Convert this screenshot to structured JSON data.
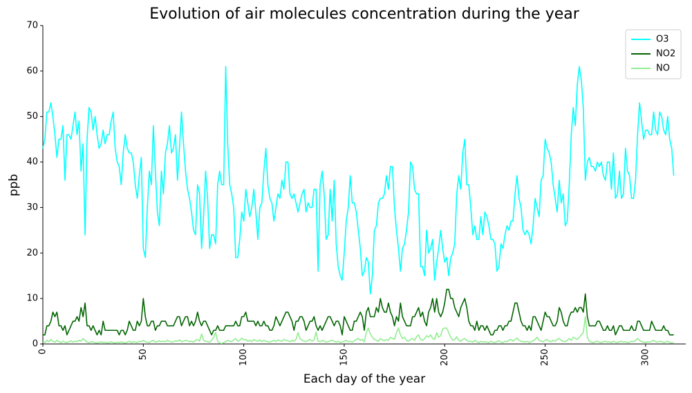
{
  "chart_data": {
    "type": "line",
    "title": "Evolution of air molecules concentration during the year",
    "xlabel": "Each day of the year",
    "ylabel": "ppb",
    "xlim": [
      0,
      320
    ],
    "ylim": [
      0,
      70
    ],
    "xticks": [
      0,
      50,
      100,
      150,
      200,
      250,
      300
    ],
    "yticks": [
      0,
      10,
      20,
      30,
      40,
      50,
      60,
      70
    ],
    "grid": false,
    "legend": "upper right",
    "x": [
      0,
      1,
      2,
      3,
      4,
      5,
      6,
      7,
      8,
      9,
      10,
      11,
      12,
      13,
      14,
      15,
      16,
      17,
      18,
      19,
      20,
      21,
      22,
      23,
      24,
      25,
      26,
      27,
      28,
      29,
      30,
      31,
      32,
      33,
      34,
      35,
      36,
      37,
      38,
      39,
      40,
      41,
      42,
      43,
      44,
      45,
      46,
      47,
      48,
      49,
      50,
      51,
      52,
      53,
      54,
      55,
      56,
      57,
      58,
      59,
      60,
      61,
      62,
      63,
      64,
      65,
      66,
      67,
      68,
      69,
      70,
      71,
      72,
      73,
      74,
      75,
      76,
      77,
      78,
      79,
      80,
      81,
      82,
      83,
      84,
      85,
      86,
      87,
      88,
      89,
      90,
      91,
      92,
      93,
      94,
      95,
      96,
      97,
      98,
      99,
      100,
      101,
      102,
      103,
      104,
      105,
      106,
      107,
      108,
      109,
      110,
      111,
      112,
      113,
      114,
      115,
      116,
      117,
      118,
      119,
      120,
      121,
      122,
      123,
      124,
      125,
      126,
      127,
      128,
      129,
      130,
      131,
      132,
      133,
      134,
      135,
      136,
      137,
      138,
      139,
      140,
      141,
      142,
      143,
      144,
      145,
      146,
      147,
      148,
      149,
      150,
      151,
      152,
      153,
      154,
      155,
      156,
      157,
      158,
      159,
      160,
      161,
      162,
      163,
      164,
      165,
      166,
      167,
      168,
      169,
      170,
      171,
      172,
      173,
      174,
      175,
      176,
      177,
      178,
      179,
      180,
      181,
      182,
      183,
      184,
      185,
      186,
      187,
      188,
      189,
      190,
      191,
      192,
      193,
      194,
      195,
      196,
      197,
      198,
      199,
      200,
      201,
      202,
      203,
      204,
      205,
      206,
      207,
      208,
      209,
      210,
      211,
      212,
      213,
      214,
      215,
      216,
      217,
      218,
      219,
      220,
      221,
      222,
      223,
      224,
      225,
      226,
      227,
      228,
      229,
      230,
      231,
      232,
      233,
      234,
      235,
      236,
      237,
      238,
      239,
      240,
      241,
      242,
      243,
      244,
      245,
      246,
      247,
      248,
      249,
      250,
      251,
      252,
      253,
      254,
      255,
      256,
      257,
      258,
      259,
      260,
      261,
      262,
      263,
      264,
      265,
      266,
      267,
      268,
      269,
      270,
      271,
      272,
      273,
      274,
      275,
      276,
      277,
      278,
      279,
      280,
      281,
      282,
      283,
      284,
      285,
      286,
      287,
      288,
      289,
      290,
      291,
      292,
      293,
      294,
      295,
      296,
      297,
      298,
      299,
      300,
      301,
      302,
      303,
      304,
      305,
      306,
      307,
      308,
      309,
      310,
      311,
      312,
      313,
      314
    ],
    "series": [
      {
        "name": "O3",
        "color": "#00ffff",
        "values": [
          43,
          45,
          51,
          51,
          53,
          50,
          46,
          41,
          45,
          45,
          48,
          36,
          46,
          46,
          45,
          48,
          51,
          46,
          49,
          38,
          44,
          24,
          45,
          52,
          51,
          47,
          50,
          46,
          43,
          44,
          47,
          44,
          46,
          46,
          49,
          51,
          43,
          40,
          39,
          35,
          42,
          46,
          43,
          42,
          42,
          40,
          35,
          32,
          37,
          41,
          21,
          19,
          30,
          38,
          35,
          48,
          38,
          29,
          26,
          38,
          33,
          42,
          44,
          48,
          42,
          43,
          46,
          36,
          43,
          51,
          44,
          38,
          34,
          32,
          29,
          25,
          24,
          35,
          33,
          21,
          28,
          38,
          32,
          21,
          24,
          24,
          22,
          35,
          38,
          35,
          35,
          61,
          44,
          35,
          33,
          30,
          19,
          19,
          23,
          29,
          27,
          34,
          31,
          28,
          30,
          34,
          29,
          23,
          30,
          31,
          38,
          43,
          35,
          32,
          31,
          27,
          30,
          33,
          32,
          36,
          34,
          40,
          40,
          33,
          32,
          33,
          31,
          29,
          31,
          33,
          34,
          29,
          31,
          30,
          30,
          34,
          34,
          16,
          35,
          38,
          33,
          23,
          24,
          34,
          27,
          36,
          22,
          17,
          15,
          14,
          20,
          27,
          30,
          37,
          31,
          31,
          29,
          25,
          21,
          15,
          16,
          19,
          18,
          11,
          15,
          25,
          26,
          31,
          32,
          32,
          33,
          37,
          34,
          39,
          39,
          30,
          25,
          21,
          16,
          21,
          22,
          25,
          29,
          40,
          39,
          34,
          33,
          33,
          17,
          17,
          15,
          25,
          20,
          21,
          23,
          14,
          18,
          21,
          25,
          21,
          18,
          19,
          15,
          19,
          20,
          22,
          33,
          37,
          34,
          42,
          45,
          35,
          35,
          30,
          24,
          26,
          23,
          23,
          28,
          24,
          29,
          28,
          26,
          23,
          23,
          22,
          16,
          17,
          22,
          21,
          24,
          26,
          25,
          27,
          27,
          33,
          37,
          32,
          30,
          25,
          24,
          25,
          24,
          22,
          26,
          32,
          30,
          28,
          36,
          37,
          45,
          43,
          42,
          40,
          35,
          32,
          29,
          36,
          31,
          33,
          26,
          27,
          35,
          46,
          52,
          48,
          57,
          61,
          58,
          52,
          36,
          40,
          41,
          39,
          39,
          38,
          40,
          39,
          40,
          37,
          36,
          40,
          40,
          34,
          42,
          32,
          33,
          38,
          32,
          33,
          43,
          38,
          37,
          32,
          32,
          36,
          46,
          53,
          49,
          45,
          47,
          47,
          46,
          46,
          51,
          47,
          46,
          51,
          50,
          47,
          46,
          50,
          45,
          43,
          37
        ]
      },
      {
        "name": "NO2",
        "color": "#006400",
        "values": [
          2,
          2,
          4,
          4,
          5,
          7,
          6,
          7,
          4,
          4,
          3,
          4,
          2,
          3,
          4,
          5,
          5,
          6,
          5,
          8,
          6,
          9,
          4,
          4,
          3,
          4,
          3,
          2,
          3,
          2,
          5,
          3,
          3,
          3,
          3,
          3,
          3,
          3,
          2,
          3,
          3,
          2,
          3,
          5,
          4,
          3,
          3,
          5,
          4,
          5,
          10,
          6,
          4,
          4,
          5,
          5,
          3,
          4,
          4,
          5,
          5,
          5,
          4,
          4,
          4,
          4,
          5,
          6,
          6,
          4,
          5,
          6,
          6,
          4,
          5,
          4,
          5,
          7,
          5,
          4,
          5,
          5,
          4,
          3,
          2,
          3,
          3,
          4,
          3,
          3,
          3,
          4,
          4,
          4,
          4,
          4,
          5,
          4,
          4,
          6,
          6,
          7,
          5,
          5,
          5,
          5,
          4,
          5,
          4,
          4,
          5,
          4,
          4,
          3,
          3,
          4,
          6,
          5,
          4,
          5,
          6,
          7,
          7,
          6,
          5,
          3,
          5,
          5,
          6,
          6,
          5,
          3,
          4,
          5,
          5,
          6,
          4,
          3,
          4,
          3,
          4,
          5,
          6,
          6,
          5,
          4,
          5,
          5,
          4,
          2,
          6,
          5,
          4,
          3,
          3,
          5,
          5,
          6,
          7,
          6,
          3,
          7,
          8,
          6,
          6,
          6,
          8,
          7,
          10,
          8,
          7,
          7,
          9,
          7,
          6,
          4,
          6,
          5,
          9,
          6,
          5,
          4,
          4,
          4,
          6,
          6,
          7,
          8,
          6,
          7,
          5,
          4,
          7,
          8,
          10,
          7,
          10,
          7,
          6,
          7,
          9,
          12,
          12,
          10,
          10,
          8,
          7,
          6,
          8,
          9,
          10,
          8,
          5,
          4,
          4,
          3,
          5,
          3,
          4,
          4,
          3,
          4,
          3,
          2,
          2,
          3,
          3,
          4,
          4,
          3,
          4,
          4,
          5,
          5,
          7,
          9,
          9,
          7,
          5,
          4,
          4,
          3,
          4,
          3,
          6,
          6,
          5,
          4,
          3,
          5,
          7,
          6,
          6,
          5,
          4,
          4,
          5,
          8,
          7,
          5,
          4,
          4,
          6,
          7,
          7,
          8,
          7,
          8,
          8,
          7,
          11,
          6,
          4,
          4,
          4,
          4,
          5,
          5,
          4,
          3,
          3,
          4,
          3,
          3,
          4,
          2,
          3,
          4,
          4,
          3,
          3,
          3,
          3,
          4,
          3,
          3,
          5,
          5,
          4,
          3,
          3,
          3,
          3,
          5,
          4,
          3,
          3,
          3,
          3,
          4,
          3,
          3,
          2,
          2,
          2
        ]
      },
      {
        "name": "NO",
        "color": "#90ee90",
        "values": [
          0.5,
          0.3,
          0.8,
          0.5,
          1,
          0.6,
          0.4,
          0.8,
          0.5,
          0.3,
          0.6,
          0.4,
          0.3,
          0.5,
          0.7,
          0.4,
          0.6,
          0.5,
          0.8,
          0.6,
          1.2,
          0.8,
          0.4,
          0.3,
          0.5,
          0.4,
          0.3,
          0.2,
          0.3,
          0.5,
          0.3,
          0.4,
          0.2,
          0.3,
          0.5,
          0.3,
          0.2,
          0.4,
          0.3,
          0.5,
          0.3,
          0.2,
          0.4,
          0.6,
          0.3,
          0.5,
          0.4,
          0.3,
          0.6,
          0.5,
          0.8,
          0.5,
          0.4,
          0.3,
          0.6,
          0.8,
          0.4,
          0.5,
          0.7,
          0.5,
          0.6,
          0.5,
          0.8,
          0.6,
          0.4,
          0.5,
          0.7,
          0.6,
          0.9,
          0.5,
          0.6,
          0.8,
          0.7,
          0.5,
          0.6,
          0.4,
          0.8,
          1,
          0.6,
          2.2,
          0.8,
          0.6,
          0.5,
          0.4,
          0.8,
          1.5,
          2.5,
          0.6,
          0.2,
          0.1,
          0.3,
          0.5,
          0.8,
          0.6,
          0.5,
          0.9,
          1.2,
          0.6,
          0.8,
          1.3,
          0.9,
          1,
          0.6,
          0.8,
          0.5,
          1,
          0.7,
          0.6,
          0.9,
          0.5,
          0.8,
          0.6,
          0.5,
          0.4,
          0.6,
          0.8,
          0.5,
          0.9,
          0.7,
          0.6,
          1,
          0.8,
          0.7,
          0.5,
          0.8,
          0.6,
          1,
          2.5,
          1.2,
          0.8,
          0.6,
          0.5,
          0.8,
          1,
          0.6,
          0.9,
          2.6,
          0.6,
          0.5,
          0.8,
          0.6,
          0.4,
          0.5,
          0.7,
          0.8,
          0.6,
          0.4,
          0.6,
          0.3,
          0.4,
          0.6,
          0.8,
          0.5,
          0.6,
          0.4,
          0.7,
          1,
          1.2,
          0.8,
          1,
          0.5,
          2.5,
          3.5,
          2.2,
          1.5,
          1,
          0.8,
          0.6,
          1.2,
          0.9,
          0.7,
          1,
          0.8,
          1.5,
          1.2,
          1,
          2.5,
          3.5,
          2,
          1.2,
          1.5,
          0.8,
          0.6,
          1,
          1.2,
          0.8,
          1.6,
          2,
          1,
          0.8,
          1.2,
          1.8,
          1.5,
          2,
          1.2,
          1,
          2.5,
          1.5,
          1.8,
          3.3,
          3.5,
          3.5,
          2.5,
          1.5,
          0.8,
          1,
          1.6,
          0.8,
          0.6,
          1,
          1.2,
          0.8,
          0.5,
          0.6,
          0.4,
          0.8,
          0.5,
          0.3,
          0.6,
          0.4,
          0.5,
          0.4,
          0.3,
          0.6,
          0.4,
          0.3,
          0.5,
          0.7,
          0.4,
          0.3,
          0.6,
          0.5,
          0.8,
          1,
          0.6,
          1,
          1.3,
          0.8,
          0.6,
          0.5,
          0.4,
          0.6,
          0.3,
          0.5,
          0.7,
          1,
          1.5,
          0.8,
          0.6,
          0.5,
          0.8,
          1,
          0.6,
          0.5,
          0.8,
          0.6,
          1,
          1.2,
          0.8,
          0.6,
          0.5,
          0.8,
          1.2,
          0.8,
          1.5,
          1.2,
          1,
          1.5,
          2,
          2.5,
          6,
          1.5,
          0.6,
          0.4,
          0.3,
          0.5,
          0.6,
          0.4,
          0.3,
          0.5,
          0.6,
          0.4,
          0.5,
          0.3,
          0.6,
          0.4,
          0.3,
          0.5,
          0.6,
          0.4,
          0.5,
          0.3,
          0.4,
          0.6,
          0.5,
          0.8,
          1.2,
          0.8,
          0.5,
          0.4,
          0.3,
          0.5,
          0.4,
          0.6,
          0.8,
          0.5,
          0.4,
          0.6,
          0.5,
          0.3,
          0.4,
          0.6,
          0.3,
          0.2,
          0.3
        ]
      }
    ]
  }
}
